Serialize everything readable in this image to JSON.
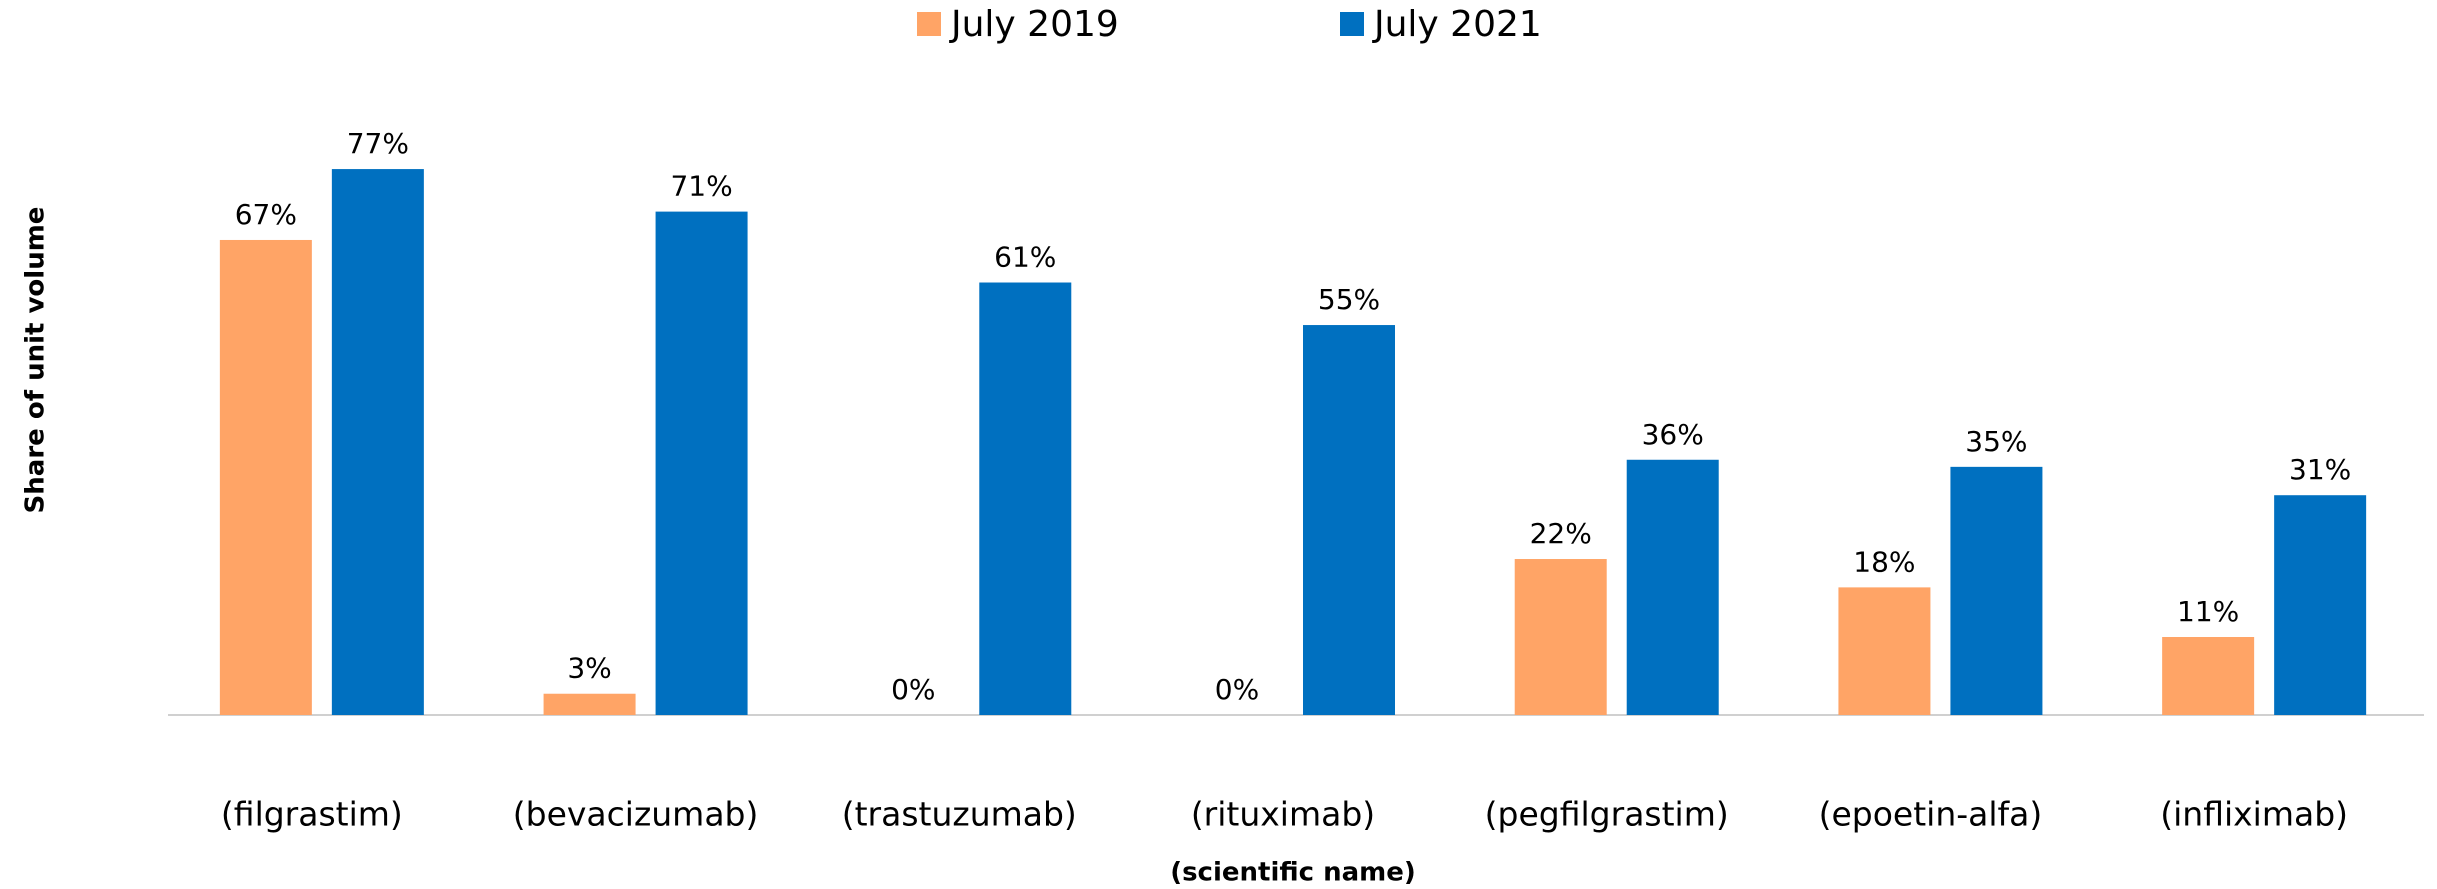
{
  "chart_data": {
    "type": "bar",
    "x_label": "(scientific name)",
    "y_label": "Share of unit volume",
    "categories": [
      "(filgrastim)",
      "(bevacizumab)",
      "(trastuzumab)",
      "(rituximab)",
      "(pegfilgrastim)",
      "(epoetin-alfa)",
      "(infliximab)"
    ],
    "series": [
      {
        "name": "July 2019",
        "color": "#ffa466",
        "values": [
          67,
          3,
          0,
          0,
          22,
          18,
          11
        ],
        "value_labels": [
          "67%",
          "3%",
          "0%",
          "0%",
          "22%",
          "18%",
          "11%"
        ]
      },
      {
        "name": "July 2021",
        "color": "#0070c0",
        "values": [
          77,
          71,
          61,
          55,
          36,
          35,
          31
        ],
        "value_labels": [
          "77%",
          "71%",
          "61%",
          "55%",
          "36%",
          "35%",
          "31%"
        ]
      }
    ],
    "ylim": [
      0,
      100
    ],
    "legend": "top"
  }
}
